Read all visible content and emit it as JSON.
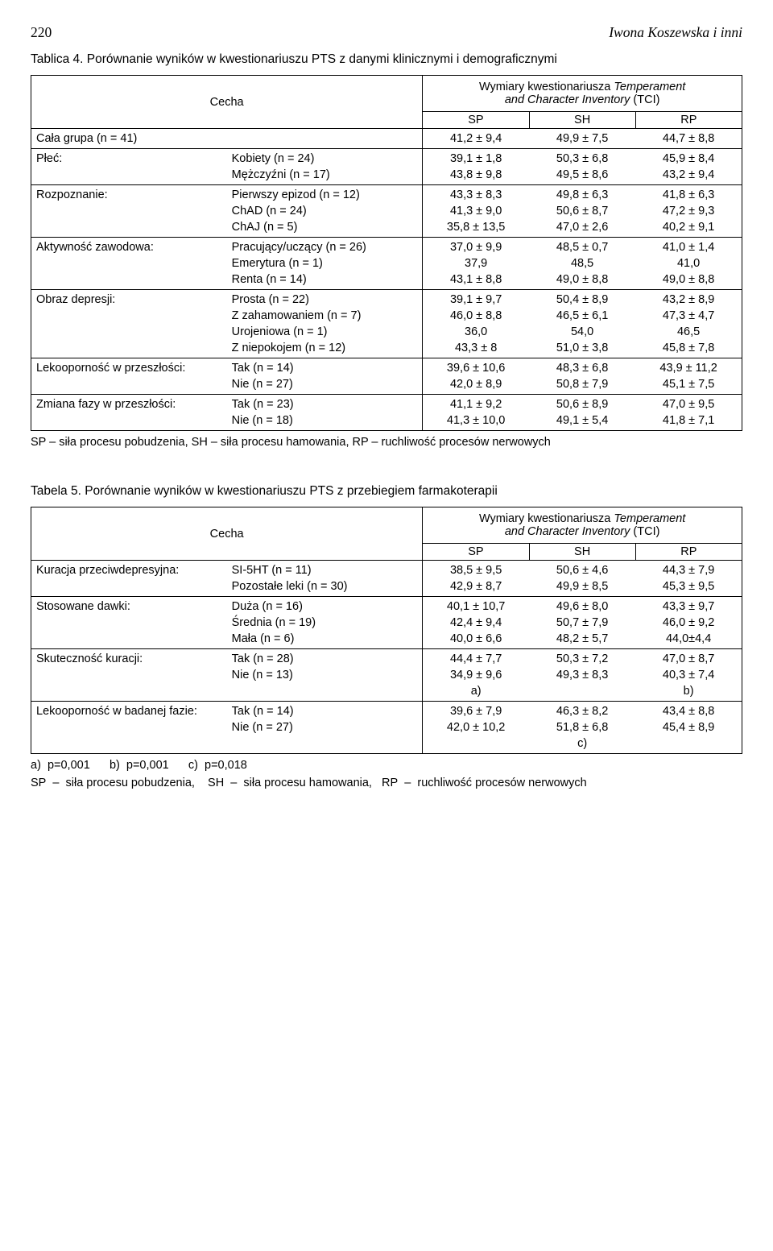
{
  "page_number": "220",
  "page_author": "Iwona Koszewska i inni",
  "table4": {
    "caption": "Tablica 4. Porównanie wyników w kwestionariuszu PTS z danymi klinicznymi i demograficznymi",
    "header": {
      "cecha": "Cecha",
      "dim_title": "Wymiary kwestionariusza Temperament and Character Inventory (TCI)",
      "sp": "SP",
      "sh": "SH",
      "rp": "RP",
      "tci_italic": "Temperament and Character Inventory"
    },
    "rows": [
      {
        "label": "Cała grupa (n = 41)",
        "sub": [
          {
            "name": "",
            "sp": "41,2 ± 9,4",
            "sh": "49,9 ± 7,5",
            "rp": "44,7 ± 8,8"
          }
        ]
      },
      {
        "label": "Płeć:",
        "sub": [
          {
            "name": "Kobiety (n = 24)",
            "sp": "39,1 ± 1,8",
            "sh": "50,3 ± 6,8",
            "rp": "45,9 ± 8,4"
          },
          {
            "name": "Mężczyźni (n = 17)",
            "sp": "43,8 ± 9,8",
            "sh": "49,5 ± 8,6",
            "rp": "43,2 ± 9,4"
          }
        ]
      },
      {
        "label": "Rozpoznanie:",
        "sub": [
          {
            "name": "Pierwszy epizod (n = 12)",
            "sp": "43,3 ± 8,3",
            "sh": "49,8 ± 6,3",
            "rp": "41,8 ± 6,3"
          },
          {
            "name": "ChAD (n = 24)",
            "sp": "41,3 ± 9,0",
            "sh": "50,6 ± 8,7",
            "rp": "47,2 ± 9,3"
          },
          {
            "name": "ChAJ (n = 5)",
            "sp": "35,8 ± 13,5",
            "sh": "47,0 ± 2,6",
            "rp": "40,2 ± 9,1"
          }
        ]
      },
      {
        "label": "Aktywność zawodowa:",
        "sub": [
          {
            "name": "Pracujący/uczący (n = 26)",
            "sp": "37,0 ± 9,9",
            "sh": "48,5 ± 0,7",
            "rp": "41,0 ± 1,4"
          },
          {
            "name": "Emerytura (n = 1)",
            "sp": "37,9",
            "sh": "48,5",
            "rp": "41,0"
          },
          {
            "name": "Renta (n = 14)",
            "sp": "43,1 ± 8,8",
            "sh": "49,0 ± 8,8",
            "rp": "49,0 ± 8,8"
          }
        ]
      },
      {
        "label": "Obraz depresji:",
        "sub": [
          {
            "name": "Prosta (n = 22)",
            "sp": "39,1 ± 9,7",
            "sh": "50,4 ± 8,9",
            "rp": "43,2 ± 8,9"
          },
          {
            "name": "Z zahamowaniem (n = 7)",
            "sp": "46,0 ± 8,8",
            "sh": "46,5 ± 6,1",
            "rp": "47,3 ± 4,7"
          },
          {
            "name": "Urojeniowa (n = 1)",
            "sp": "36,0",
            "sh": "54,0",
            "rp": "46,5"
          },
          {
            "name": "Z niepokojem (n = 12)",
            "sp": "43,3 ± 8",
            "sh": "51,0 ± 3,8",
            "rp": "45,8 ± 7,8"
          }
        ]
      },
      {
        "label": "Lekooporność w przeszłości:",
        "sub": [
          {
            "name": "Tak (n = 14)",
            "sp": "39,6 ± 10,6",
            "sh": "48,3 ± 6,8",
            "rp": "43,9 ± 11,2"
          },
          {
            "name": "Nie (n = 27)",
            "sp": "42,0 ± 8,9",
            "sh": "50,8 ± 7,9",
            "rp": "45,1 ± 7,5"
          }
        ]
      },
      {
        "label": "Zmiana fazy w przeszłości:",
        "sub": [
          {
            "name": "Tak (n = 23)",
            "sp": "41,1 ± 9,2",
            "sh": "50,6 ± 8,9",
            "rp": "47,0 ± 9,5"
          },
          {
            "name": "Nie (n = 18)",
            "sp": "41,3 ± 10,0",
            "sh": "49,1 ± 5,4",
            "rp": "41,8 ± 7,1"
          }
        ]
      }
    ],
    "footnote": "SP – siła procesu pobudzenia, SH – siła procesu hamowania, RP – ruchliwość procesów nerwowych"
  },
  "table5": {
    "caption": "Tabela 5. Porównanie wyników w kwestionariuszu PTS z przebiegiem farmakoterapii",
    "header": {
      "cecha": "Cecha",
      "dim_title": "Wymiary kwestionariusza Temperament and Character Inventory (TCI)",
      "sp": "SP",
      "sh": "SH",
      "rp": "RP"
    },
    "rows": [
      {
        "label": "Kuracja przeciwdepresyjna:",
        "sub": [
          {
            "name": "SI-5HT (n = 11)",
            "sp": "38,5 ± 9,5",
            "sh": "50,6 ± 4,6",
            "rp": "44,3 ± 7,9"
          },
          {
            "name": "Pozostałe leki (n = 30)",
            "sp": "42,9 ± 8,7",
            "sh": "49,9 ± 8,5",
            "rp": "45,3 ± 9,5"
          }
        ]
      },
      {
        "label": "Stosowane dawki:",
        "sub": [
          {
            "name": "Duża (n = 16)",
            "sp": "40,1 ± 10,7",
            "sh": "49,6 ± 8,0",
            "rp": "43,3 ± 9,7"
          },
          {
            "name": "Średnia (n = 19)",
            "sp": "42,4 ± 9,4",
            "sh": "50,7 ± 7,9",
            "rp": "46,0 ± 9,2"
          },
          {
            "name": "Mała (n = 6)",
            "sp": "40,0 ± 6,6",
            "sh": "48,2 ± 5,7",
            "rp": "44,0±4,4"
          }
        ]
      },
      {
        "label": "Skuteczność kuracji:",
        "sub": [
          {
            "name": "Tak (n = 28)",
            "sp": "44,4 ± 7,7",
            "sh": "50,3 ± 7,2",
            "rp": "47,0 ± 8,7"
          },
          {
            "name": "Nie (n = 13)",
            "sp": "34,9 ± 9,6",
            "sh": "49,3 ± 8,3",
            "rp": "40,3 ± 7,4"
          },
          {
            "name": "",
            "sp": "a)",
            "sh": "",
            "rp": "b)"
          }
        ]
      },
      {
        "label": "Lekooporność w badanej fazie:",
        "sub": [
          {
            "name": "Tak (n = 14)",
            "sp": "39,6 ± 7,9",
            "sh": "46,3 ± 8,2",
            "rp": "43,4 ± 8,8"
          },
          {
            "name": "Nie (n = 27)",
            "sp": "42,0 ± 10,2",
            "sh": "51,8 ± 6,8",
            "rp": "45,4 ± 8,9"
          },
          {
            "name": "",
            "sp": "",
            "sh": "c)",
            "rp": ""
          }
        ]
      }
    ],
    "footnote_line1": "a)  p=0,001      b)  p=0,001      c)  p=0,018",
    "footnote_line2": "SP  –  siła procesu pobudzenia,    SH  –  siła procesu hamowania,   RP  –  ruchliwość procesów nerwowych"
  }
}
